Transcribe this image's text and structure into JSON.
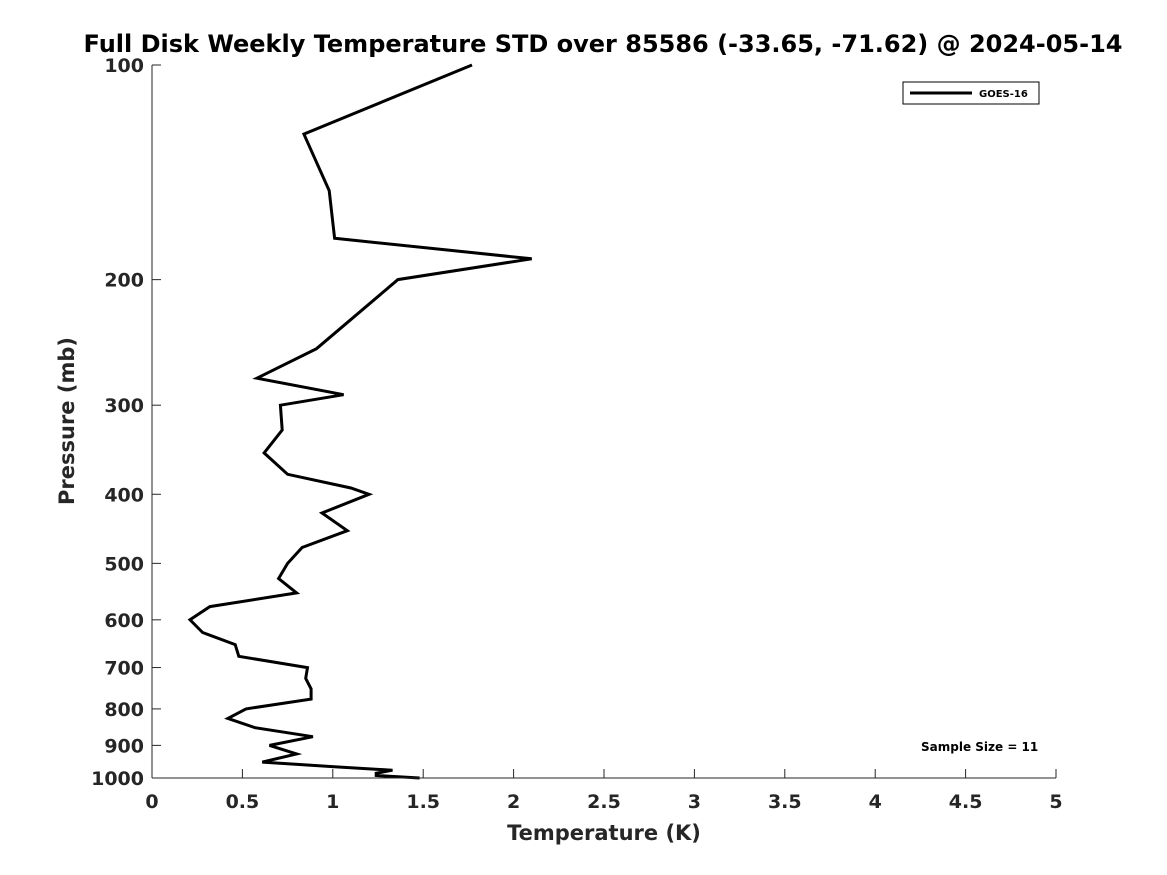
{
  "chart_data": {
    "type": "line",
    "title": "Full Disk Weekly Temperature STD over 85586 (-33.65, -71.62) @ 2024-05-14",
    "xlabel": "Temperature (K)",
    "ylabel": "Pressure (mb)",
    "xlim": [
      0,
      5
    ],
    "ylim": [
      100,
      1000
    ],
    "yscale": "log",
    "y_reversed": true,
    "grid": false,
    "legend_position": "top-right",
    "x_ticks": [
      0,
      0.5,
      1,
      1.5,
      2,
      2.5,
      3,
      3.5,
      4,
      4.5,
      5
    ],
    "x_tick_labels": [
      "0",
      "0.5",
      "1",
      "1.5",
      "2",
      "2.5",
      "3",
      "3.5",
      "4",
      "4.5",
      "5"
    ],
    "y_ticks": [
      100,
      200,
      300,
      400,
      500,
      600,
      700,
      800,
      900,
      1000
    ],
    "y_tick_labels": [
      "100",
      "200",
      "300",
      "400",
      "500",
      "600",
      "700",
      "800",
      "900",
      "1000"
    ],
    "series": [
      {
        "name": "GOES-16",
        "color": "#000000",
        "points": [
          [
            1.77,
            100
          ],
          [
            0.84,
            125
          ],
          [
            0.98,
            150
          ],
          [
            1.01,
            175
          ],
          [
            2.1,
            187
          ],
          [
            1.36,
            200
          ],
          [
            0.91,
            250
          ],
          [
            0.58,
            275
          ],
          [
            1.06,
            290
          ],
          [
            0.71,
            300
          ],
          [
            0.72,
            325
          ],
          [
            0.62,
            350
          ],
          [
            0.75,
            375
          ],
          [
            1.1,
            392
          ],
          [
            1.2,
            400
          ],
          [
            0.94,
            425
          ],
          [
            1.08,
            450
          ],
          [
            0.83,
            475
          ],
          [
            0.75,
            500
          ],
          [
            0.7,
            525
          ],
          [
            0.8,
            550
          ],
          [
            0.32,
            575
          ],
          [
            0.21,
            600
          ],
          [
            0.28,
            625
          ],
          [
            0.46,
            650
          ],
          [
            0.48,
            675
          ],
          [
            0.86,
            700
          ],
          [
            0.85,
            725
          ],
          [
            0.88,
            750
          ],
          [
            0.88,
            775
          ],
          [
            0.52,
            800
          ],
          [
            0.42,
            825
          ],
          [
            0.57,
            850
          ],
          [
            0.89,
            875
          ],
          [
            0.65,
            900
          ],
          [
            0.8,
            925
          ],
          [
            0.61,
            950
          ],
          [
            1.03,
            965
          ],
          [
            1.33,
            975
          ],
          [
            1.24,
            985
          ],
          [
            1.24,
            992
          ],
          [
            1.48,
            1000
          ]
        ]
      }
    ],
    "annotations": [
      "Sample Size = 11"
    ]
  }
}
